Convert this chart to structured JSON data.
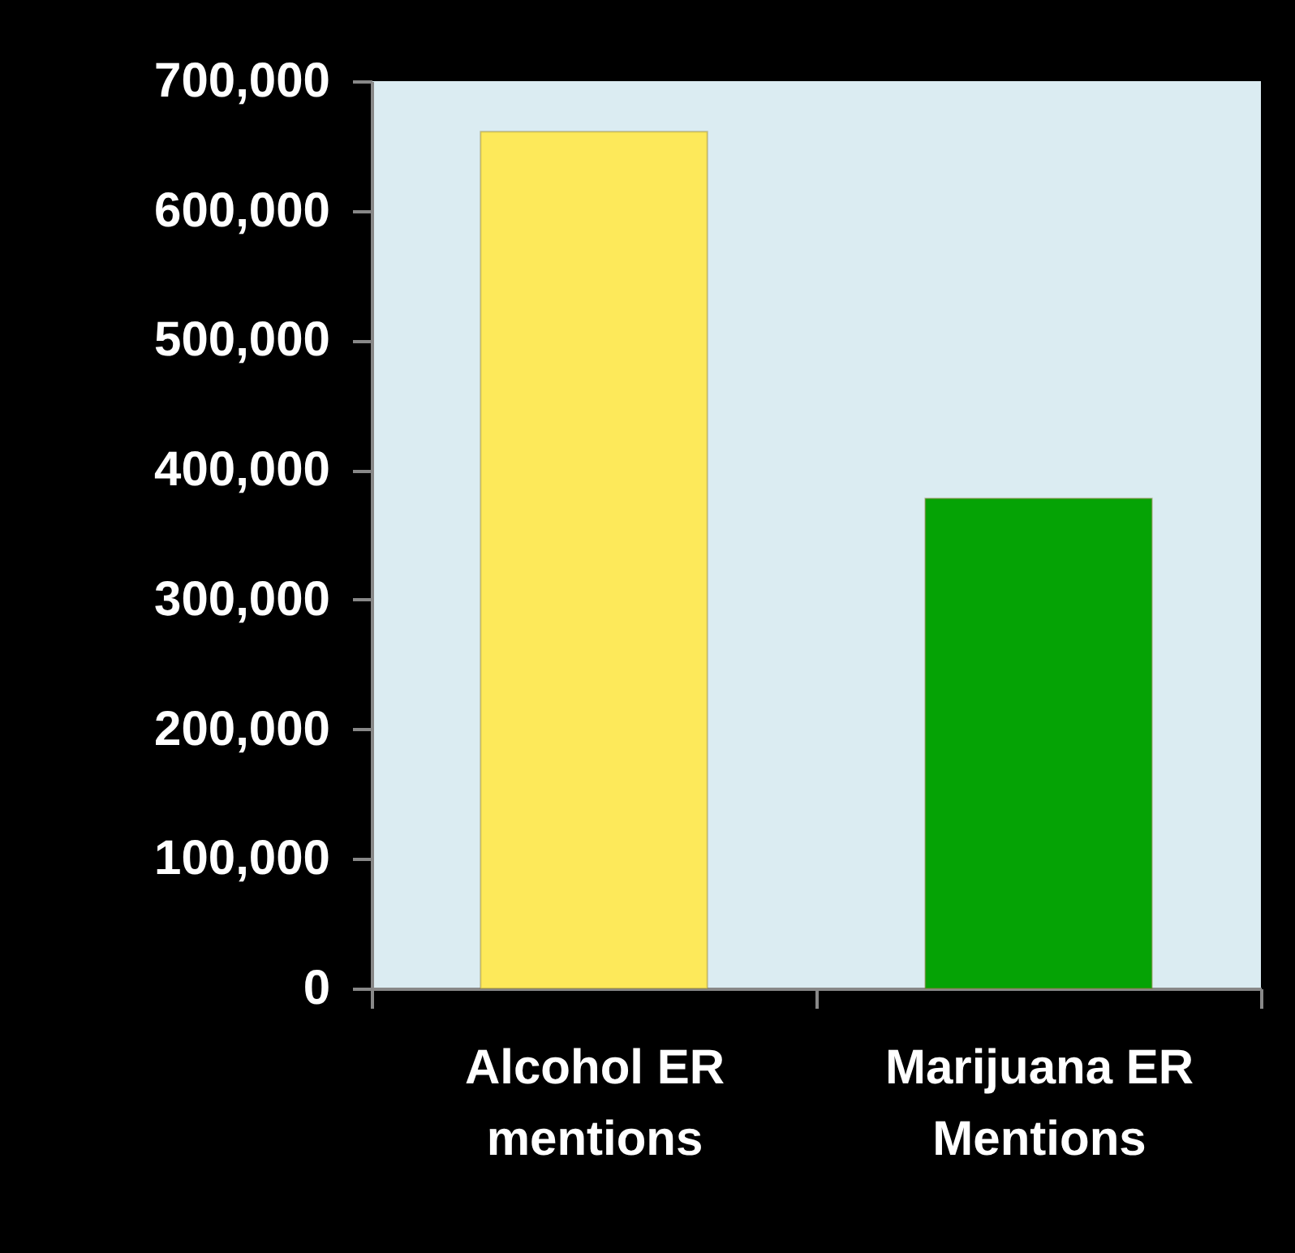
{
  "chart_data": {
    "type": "bar",
    "categories": [
      "Alcohol ER mentions",
      "Marijuana ER Mentions"
    ],
    "values": [
      661000,
      378000
    ],
    "colors": [
      "#fde95a",
      "#05a305"
    ],
    "ylim": [
      0,
      700000
    ],
    "yticks": [
      0,
      {
        "value": 100000,
        "label": "100,000"
      },
      {
        "value": 200000,
        "label": "200,000"
      },
      {
        "value": 300000,
        "label": "300,000"
      },
      {
        "value": 400000,
        "label": "400,000"
      },
      {
        "value": 500000,
        "label": "500,000"
      },
      {
        "value": 600000,
        "label": "600,000"
      },
      {
        "value": 700000,
        "label": "700,000"
      }
    ],
    "grid": false
  }
}
